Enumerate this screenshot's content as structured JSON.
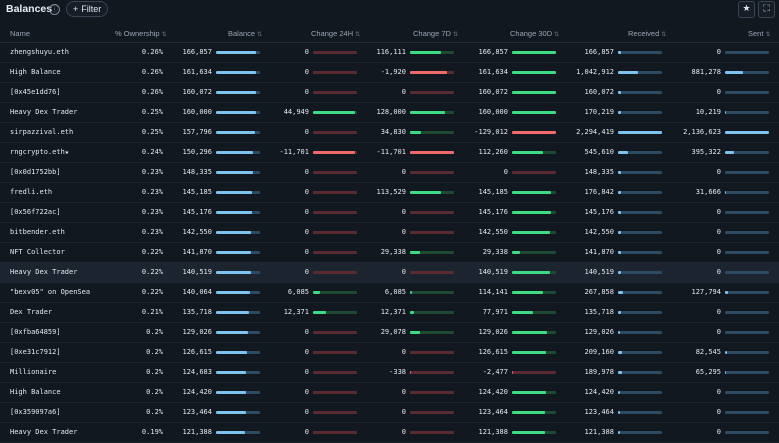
{
  "header": {
    "title": "Balances",
    "info_icon": "ⓘ",
    "filter_label": "Filter",
    "star_icon": "★",
    "expand_icon": "⛶"
  },
  "columns": [
    "Name",
    "% Ownership",
    "Balance",
    "Change 24H",
    "Change 7D",
    "Change 30D",
    "Received",
    "Sent"
  ],
  "colors": {
    "positive": "#3ddc84",
    "negative": "#f26b6b",
    "balance": "#7cc3f0"
  },
  "rows": [
    {
      "name": "zhengshuyu.eth",
      "own": "0.26%",
      "bal": "166,857",
      "bal_f": 0.92,
      "c24": "0",
      "c24_f": 0,
      "c7": "116,111",
      "c7_f": 0.7,
      "c30": "166,857",
      "c30_f": 1,
      "rec": "166,857",
      "rec_f": 0.06,
      "sent": "0",
      "sent_f": 0
    },
    {
      "name": "High Balance",
      "own": "0.26%",
      "bal": "161,634",
      "bal_f": 0.9,
      "c24": "0",
      "c24_f": 0,
      "c7": "-1,920",
      "c7_f": -0.85,
      "c30": "161,634",
      "c30_f": 1,
      "rec": "1,042,912",
      "rec_f": 0.45,
      "sent": "881,278",
      "sent_f": 0.4
    },
    {
      "name": "[0x45e1dd76]",
      "own": "0.26%",
      "bal": "160,072",
      "bal_f": 0.9,
      "c24": "0",
      "c24_f": 0,
      "c7": "0",
      "c7_f": 0,
      "c30": "160,072",
      "c30_f": 1,
      "rec": "160,072",
      "rec_f": 0.06,
      "sent": "0",
      "sent_f": 0
    },
    {
      "name": "Heavy Dex Trader",
      "own": "0.25%",
      "bal": "160,000",
      "bal_f": 0.9,
      "c24": "44,949",
      "c24_f": 0.95,
      "c7": "128,000",
      "c7_f": 0.8,
      "c30": "160,000",
      "c30_f": 1,
      "rec": "170,219",
      "rec_f": 0.07,
      "sent": "10,219",
      "sent_f": 0.01
    },
    {
      "name": "sirpazzival.eth",
      "own": "0.25%",
      "bal": "157,796",
      "bal_f": 0.88,
      "c24": "0",
      "c24_f": 0,
      "c7": "34,830",
      "c7_f": 0.25,
      "c30": "-129,012",
      "c30_f": -1,
      "rec": "2,294,419",
      "rec_f": 1,
      "sent": "2,136,623",
      "sent_f": 1
    },
    {
      "name": "rngcrypto.eth★",
      "own": "0.24%",
      "bal": "150,296",
      "bal_f": 0.84,
      "c24": "-11,701",
      "c24_f": -0.95,
      "c7": "-11,701",
      "c7_f": -1,
      "c30": "112,260",
      "c30_f": 0.7,
      "rec": "545,610",
      "rec_f": 0.22,
      "sent": "395,322",
      "sent_f": 0.2
    },
    {
      "name": "[0x0d1752bb]",
      "own": "0.23%",
      "bal": "148,335",
      "bal_f": 0.83,
      "c24": "0",
      "c24_f": 0,
      "c7": "0",
      "c7_f": 0,
      "c30": "0",
      "c30_f": 0,
      "rec": "148,335",
      "rec_f": 0.06,
      "sent": "0",
      "sent_f": 0
    },
    {
      "name": "fredli.eth",
      "own": "0.23%",
      "bal": "145,185",
      "bal_f": 0.82,
      "c24": "0",
      "c24_f": 0,
      "c7": "113,529",
      "c7_f": 0.7,
      "c30": "145,185",
      "c30_f": 0.88,
      "rec": "176,842",
      "rec_f": 0.07,
      "sent": "31,666",
      "sent_f": 0.02
    },
    {
      "name": "[0x56f722ac]",
      "own": "0.23%",
      "bal": "145,176",
      "bal_f": 0.82,
      "c24": "0",
      "c24_f": 0,
      "c7": "0",
      "c7_f": 0,
      "c30": "145,176",
      "c30_f": 0.88,
      "rec": "145,176",
      "rec_f": 0.06,
      "sent": "0",
      "sent_f": 0
    },
    {
      "name": "bitbender.eth",
      "own": "0.23%",
      "bal": "142,550",
      "bal_f": 0.8,
      "c24": "0",
      "c24_f": 0,
      "c7": "0",
      "c7_f": 0,
      "c30": "142,550",
      "c30_f": 0.87,
      "rec": "142,550",
      "rec_f": 0.06,
      "sent": "0",
      "sent_f": 0
    },
    {
      "name": "NFT Collector",
      "own": "0.22%",
      "bal": "141,870",
      "bal_f": 0.8,
      "c24": "0",
      "c24_f": 0,
      "c7": "29,338",
      "c7_f": 0.22,
      "c30": "29,338",
      "c30_f": 0.18,
      "rec": "141,870",
      "rec_f": 0.06,
      "sent": "0",
      "sent_f": 0
    },
    {
      "name": "Heavy Dex Trader",
      "own": "0.22%",
      "bal": "140,519",
      "bal_f": 0.79,
      "c24": "0",
      "c24_f": 0,
      "c7": "0",
      "c7_f": 0,
      "c30": "140,519",
      "c30_f": 0.86,
      "rec": "140,519",
      "rec_f": 0.06,
      "sent": "0",
      "sent_f": 0
    },
    {
      "name": "\"bexv05\" on OpenSea",
      "own": "0.22%",
      "bal": "140,064",
      "bal_f": 0.78,
      "c24": "6,085",
      "c24_f": 0.15,
      "c7": "6,085",
      "c7_f": 0.05,
      "c30": "114,141",
      "c30_f": 0.7,
      "rec": "267,858",
      "rec_f": 0.11,
      "sent": "127,794",
      "sent_f": 0.06
    },
    {
      "name": "Dex Trader",
      "own": "0.21%",
      "bal": "135,718",
      "bal_f": 0.76,
      "c24": "12,371",
      "c24_f": 0.3,
      "c7": "12,371",
      "c7_f": 0.1,
      "c30": "77,971",
      "c30_f": 0.48,
      "rec": "135,718",
      "rec_f": 0.06,
      "sent": "0",
      "sent_f": 0
    },
    {
      "name": "[0xfba64859]",
      "own": "0.2%",
      "bal": "129,026",
      "bal_f": 0.72,
      "c24": "0",
      "c24_f": 0,
      "c7": "29,078",
      "c7_f": 0.22,
      "c30": "129,026",
      "c30_f": 0.8,
      "rec": "129,026",
      "rec_f": 0.05,
      "sent": "0",
      "sent_f": 0
    },
    {
      "name": "[0xe31c7912]",
      "own": "0.2%",
      "bal": "126,615",
      "bal_f": 0.7,
      "c24": "0",
      "c24_f": 0,
      "c7": "0",
      "c7_f": 0,
      "c30": "126,615",
      "c30_f": 0.78,
      "rec": "209,160",
      "rec_f": 0.09,
      "sent": "82,545",
      "sent_f": 0.04
    },
    {
      "name": "Millionaire",
      "own": "0.2%",
      "bal": "124,683",
      "bal_f": 0.69,
      "c24": "0",
      "c24_f": 0,
      "c7": "-338",
      "c7_f": -0.02,
      "c30": "-2,477",
      "c30_f": -0.02,
      "rec": "189,978",
      "rec_f": 0.08,
      "sent": "65,295",
      "sent_f": 0.03
    },
    {
      "name": "High Balance",
      "own": "0.2%",
      "bal": "124,420",
      "bal_f": 0.69,
      "c24": "0",
      "c24_f": 0,
      "c7": "0",
      "c7_f": 0,
      "c30": "124,420",
      "c30_f": 0.77,
      "rec": "124,420",
      "rec_f": 0.05,
      "sent": "0",
      "sent_f": 0
    },
    {
      "name": "[0x359097a6]",
      "own": "0.2%",
      "bal": "123,464",
      "bal_f": 0.68,
      "c24": "0",
      "c24_f": 0,
      "c7": "0",
      "c7_f": 0,
      "c30": "123,464",
      "c30_f": 0.76,
      "rec": "123,464",
      "rec_f": 0.05,
      "sent": "0",
      "sent_f": 0
    },
    {
      "name": "Heavy Dex Trader",
      "own": "0.19%",
      "bal": "121,388",
      "bal_f": 0.67,
      "c24": "0",
      "c24_f": 0,
      "c7": "0",
      "c7_f": 0,
      "c30": "121,388",
      "c30_f": 0.75,
      "rec": "121,388",
      "rec_f": 0.05,
      "sent": "0",
      "sent_f": 0
    }
  ]
}
